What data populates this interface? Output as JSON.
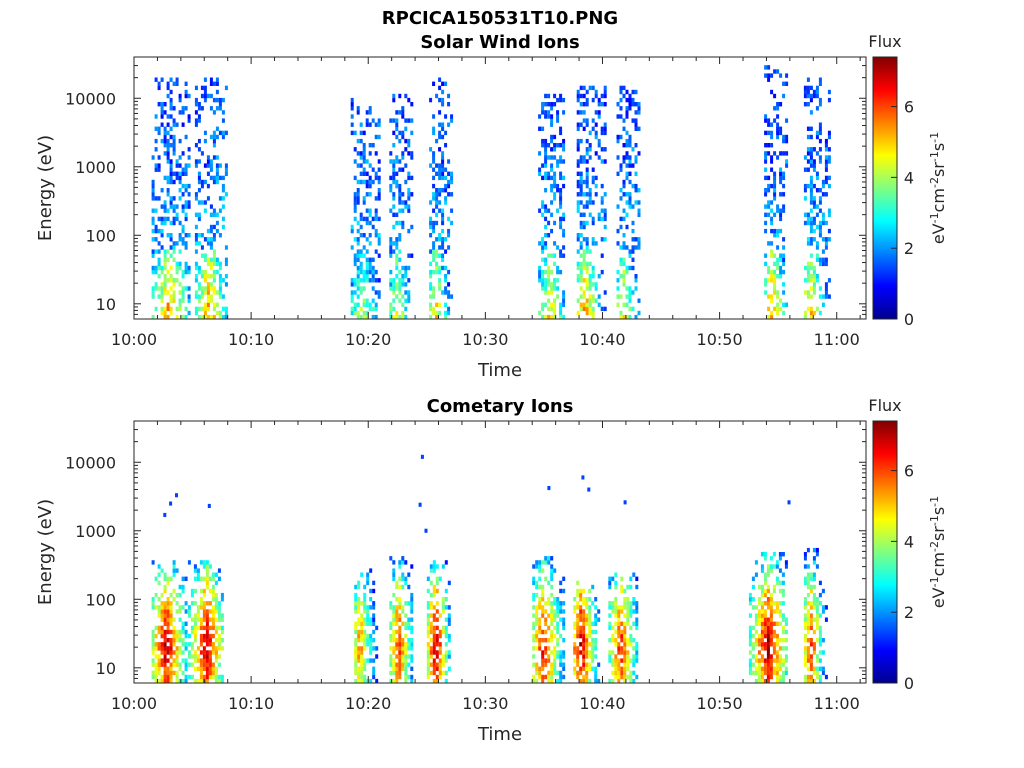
{
  "figure_title": "RPCICA150531T10.PNG",
  "colormap": [
    "#00008f",
    "#0000ff",
    "#0080ff",
    "#00ffff",
    "#80ff80",
    "#ffff00",
    "#ff8000",
    "#ff0000",
    "#800000"
  ],
  "chart_data": [
    {
      "type": "heatmap",
      "title": "Solar Wind Ions",
      "xlabel": "Time",
      "ylabel": "Energy (eV)",
      "x_ticks": [
        "10:00",
        "10:10",
        "10:20",
        "10:30",
        "10:40",
        "10:50",
        "11:00"
      ],
      "x_tick_minutes": [
        0,
        10,
        20,
        30,
        40,
        50,
        60
      ],
      "xlim_minutes": [
        0,
        62.5
      ],
      "y_scale": "log",
      "ylim": [
        6,
        40000
      ],
      "y_ticks": [
        10,
        100,
        1000,
        10000
      ],
      "y_tick_labels": [
        "10",
        "100",
        "1000",
        "10000"
      ],
      "colorbar": {
        "title": "Flux",
        "label": "eV-1cm-2sr-1s-1",
        "range": [
          0,
          7.4
        ],
        "ticks": [
          0,
          2,
          4,
          6
        ]
      },
      "bursts": [
        {
          "start_min": 1.5,
          "end_min": 4.7,
          "emax": 20000,
          "peak_min": 3.0,
          "peak_flux": 5.5
        },
        {
          "start_min": 5.2,
          "end_min": 7.8,
          "emax": 20000,
          "peak_min": 6.4,
          "peak_flux": 5.6
        },
        {
          "start_min": 18.5,
          "end_min": 21.0,
          "emax": 10000,
          "peak_min": 19.5,
          "peak_flux": 4.2
        },
        {
          "start_min": 21.8,
          "end_min": 23.8,
          "emax": 12000,
          "peak_min": 22.5,
          "peak_flux": 4.6
        },
        {
          "start_min": 25.2,
          "end_min": 27.0,
          "emax": 20000,
          "peak_min": 25.8,
          "peak_flux": 5.0
        },
        {
          "start_min": 34.5,
          "end_min": 36.8,
          "emax": 12000,
          "peak_min": 35.5,
          "peak_flux": 5.0
        },
        {
          "start_min": 37.8,
          "end_min": 40.2,
          "emax": 15000,
          "peak_min": 38.5,
          "peak_flux": 5.4
        },
        {
          "start_min": 41.2,
          "end_min": 43.2,
          "emax": 15000,
          "peak_min": 41.8,
          "peak_flux": 4.8
        },
        {
          "start_min": 53.8,
          "end_min": 55.8,
          "emax": 30000,
          "peak_min": 54.5,
          "peak_flux": 5.5
        },
        {
          "start_min": 57.2,
          "end_min": 59.4,
          "emax": 20000,
          "peak_min": 57.8,
          "peak_flux": 5.3
        }
      ]
    },
    {
      "type": "heatmap",
      "title": "Cometary Ions",
      "xlabel": "Time",
      "ylabel": "Energy (eV)",
      "x_ticks": [
        "10:00",
        "10:10",
        "10:20",
        "10:30",
        "10:40",
        "10:50",
        "11:00"
      ],
      "x_tick_minutes": [
        0,
        10,
        20,
        30,
        40,
        50,
        60
      ],
      "xlim_minutes": [
        0,
        62.5
      ],
      "y_scale": "log",
      "ylim": [
        6,
        40000
      ],
      "y_ticks": [
        10,
        100,
        1000,
        10000
      ],
      "y_tick_labels": [
        "10",
        "100",
        "1000",
        "10000"
      ],
      "colorbar": {
        "title": "Flux",
        "label": "eV-1cm-2sr-1s-1",
        "range": [
          0,
          7.4
        ],
        "ticks": [
          0,
          2,
          4,
          6
        ]
      },
      "bursts": [
        {
          "start_min": 1.5,
          "end_min": 4.5,
          "emax": 350,
          "peak_min": 2.8,
          "peak_flux": 7.2
        },
        {
          "start_min": 4.6,
          "end_min": 7.6,
          "emax": 350,
          "peak_min": 6.2,
          "peak_flux": 7.2
        },
        {
          "start_min": 18.8,
          "end_min": 20.8,
          "emax": 300,
          "peak_min": 19.3,
          "peak_flux": 5.6
        },
        {
          "start_min": 21.8,
          "end_min": 23.8,
          "emax": 450,
          "peak_min": 22.6,
          "peak_flux": 6.4
        },
        {
          "start_min": 25.0,
          "end_min": 27.0,
          "emax": 350,
          "peak_min": 25.8,
          "peak_flux": 7.2
        },
        {
          "start_min": 34.0,
          "end_min": 36.8,
          "emax": 400,
          "peak_min": 35.0,
          "peak_flux": 6.8
        },
        {
          "start_min": 37.5,
          "end_min": 39.8,
          "emax": 200,
          "peak_min": 38.2,
          "peak_flux": 7.2
        },
        {
          "start_min": 40.5,
          "end_min": 43.0,
          "emax": 250,
          "peak_min": 41.6,
          "peak_flux": 6.5
        },
        {
          "start_min": 52.5,
          "end_min": 55.8,
          "emax": 500,
          "peak_min": 54.2,
          "peak_flux": 7.3
        },
        {
          "start_min": 57.2,
          "end_min": 59.0,
          "emax": 600,
          "peak_min": 57.8,
          "peak_flux": 6.5
        }
      ],
      "isolated_points": [
        {
          "t_min": 3.5,
          "energy": 3300
        },
        {
          "t_min": 3.0,
          "energy": 2500
        },
        {
          "t_min": 2.5,
          "energy": 1700
        },
        {
          "t_min": 6.3,
          "energy": 2300
        },
        {
          "t_min": 24.3,
          "energy": 2400
        },
        {
          "t_min": 24.8,
          "energy": 1000
        },
        {
          "t_min": 24.5,
          "energy": 12000
        },
        {
          "t_min": 35.3,
          "energy": 4200
        },
        {
          "t_min": 38.2,
          "energy": 6000
        },
        {
          "t_min": 38.7,
          "energy": 4000
        },
        {
          "t_min": 41.8,
          "energy": 2600
        },
        {
          "t_min": 55.8,
          "energy": 2600
        }
      ]
    }
  ]
}
